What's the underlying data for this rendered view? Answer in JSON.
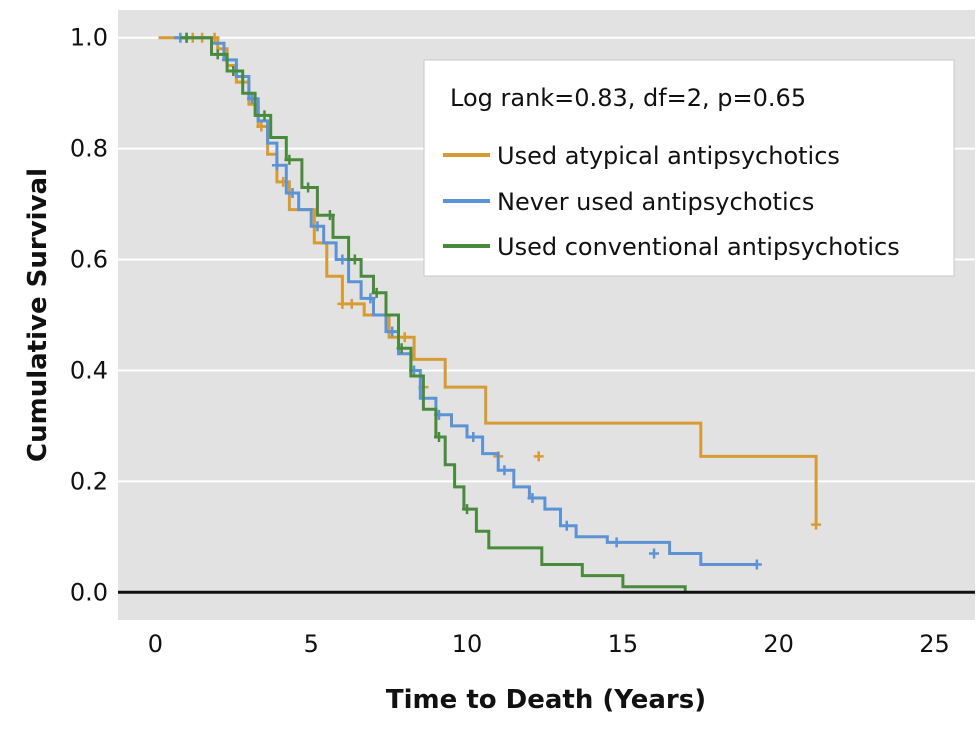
{
  "chart_data": {
    "type": "line",
    "subtype": "kaplan-meier step",
    "xlabel": "Time to Death (Years)",
    "ylabel": "Cumulative Survival",
    "xlim": [
      -1.2,
      26.3
    ],
    "ylim": [
      -0.05,
      1.05
    ],
    "xticks": [
      0,
      5,
      10,
      15,
      20,
      25
    ],
    "yticks": [
      0.0,
      0.2,
      0.4,
      0.6,
      0.8,
      1.0
    ],
    "xtick_labels": [
      "0",
      "5",
      "10",
      "15",
      "20",
      "25"
    ],
    "ytick_labels": [
      "0.0",
      "0.2",
      "0.4",
      "0.6",
      "0.8",
      "1.0"
    ],
    "grid": "horizontal",
    "legend_position": "top-right",
    "annotation": "Log rank=0.83, df=2, p=0.65",
    "colors": {
      "background": "#e2e2e2",
      "grid": "#ffffff",
      "zero_line": "#111111"
    },
    "series": [
      {
        "name": "Used atypical antipsychotics",
        "color": "#d79b34",
        "x": [
          0.1,
          2.0,
          2.3,
          2.6,
          3.0,
          3.3,
          3.6,
          3.9,
          4.3,
          5.1,
          5.5,
          6.0,
          6.7,
          7.5,
          8.3,
          9.3,
          10.6,
          17.5,
          21.2
        ],
        "y": [
          1.0,
          0.98,
          0.95,
          0.92,
          0.88,
          0.84,
          0.79,
          0.74,
          0.69,
          0.63,
          0.57,
          0.52,
          0.5,
          0.46,
          0.42,
          0.37,
          0.305,
          0.245,
          0.122
        ],
        "censored_x": [
          1.2,
          1.5,
          1.9,
          2.8,
          3.4,
          4.1,
          6.0,
          6.3,
          8.0,
          8.6,
          11.0,
          12.3,
          21.2
        ],
        "censored_y": [
          1.0,
          1.0,
          1.0,
          0.92,
          0.84,
          0.74,
          0.52,
          0.52,
          0.46,
          0.37,
          0.245,
          0.245,
          0.122
        ]
      },
      {
        "name": "Never used antipsychotics",
        "color": "#5b93d4",
        "x": [
          0.6,
          1.8,
          2.2,
          2.6,
          3.0,
          3.3,
          3.6,
          3.9,
          4.2,
          4.6,
          5.0,
          5.4,
          5.8,
          6.2,
          6.6,
          7.0,
          7.4,
          7.8,
          8.2,
          8.5,
          9.0,
          9.5,
          10.0,
          10.5,
          11.0,
          11.5,
          12.0,
          12.5,
          13.0,
          13.5,
          14.5,
          16.5,
          17.5,
          19.3
        ],
        "y": [
          1.0,
          0.99,
          0.96,
          0.93,
          0.89,
          0.85,
          0.81,
          0.77,
          0.72,
          0.69,
          0.66,
          0.63,
          0.6,
          0.56,
          0.53,
          0.5,
          0.47,
          0.43,
          0.4,
          0.35,
          0.32,
          0.3,
          0.28,
          0.25,
          0.22,
          0.19,
          0.17,
          0.15,
          0.12,
          0.1,
          0.09,
          0.07,
          0.05,
          0.05
        ],
        "censored_x": [
          0.8,
          1.0,
          2.3,
          3.1,
          3.9,
          4.4,
          5.2,
          6.0,
          6.9,
          7.6,
          8.3,
          9.1,
          10.2,
          11.2,
          12.1,
          13.2,
          14.8,
          16.0,
          19.3
        ],
        "censored_y": [
          1.0,
          1.0,
          0.96,
          0.89,
          0.77,
          0.72,
          0.66,
          0.6,
          0.53,
          0.47,
          0.4,
          0.32,
          0.28,
          0.22,
          0.17,
          0.12,
          0.09,
          0.07,
          0.05
        ]
      },
      {
        "name": "Used conventional antipsychotics",
        "color": "#4a8a3c",
        "x": [
          0.8,
          1.8,
          2.3,
          2.8,
          3.2,
          3.7,
          4.2,
          4.7,
          5.2,
          5.7,
          6.2,
          6.6,
          7.0,
          7.4,
          7.8,
          8.2,
          8.6,
          9.0,
          9.3,
          9.6,
          9.9,
          10.3,
          10.7,
          12.4,
          13.7,
          15.0,
          17.0
        ],
        "y": [
          1.0,
          0.97,
          0.94,
          0.9,
          0.86,
          0.82,
          0.78,
          0.73,
          0.68,
          0.64,
          0.6,
          0.57,
          0.54,
          0.5,
          0.44,
          0.39,
          0.33,
          0.28,
          0.23,
          0.19,
          0.15,
          0.11,
          0.08,
          0.05,
          0.03,
          0.01,
          0.0
        ],
        "censored_x": [
          1.0,
          2.0,
          2.5,
          3.5,
          4.3,
          4.9,
          5.6,
          6.4,
          7.1,
          7.9,
          9.1,
          10.0
        ],
        "censored_y": [
          1.0,
          0.97,
          0.94,
          0.86,
          0.78,
          0.73,
          0.68,
          0.6,
          0.54,
          0.44,
          0.28,
          0.15
        ]
      }
    ]
  }
}
